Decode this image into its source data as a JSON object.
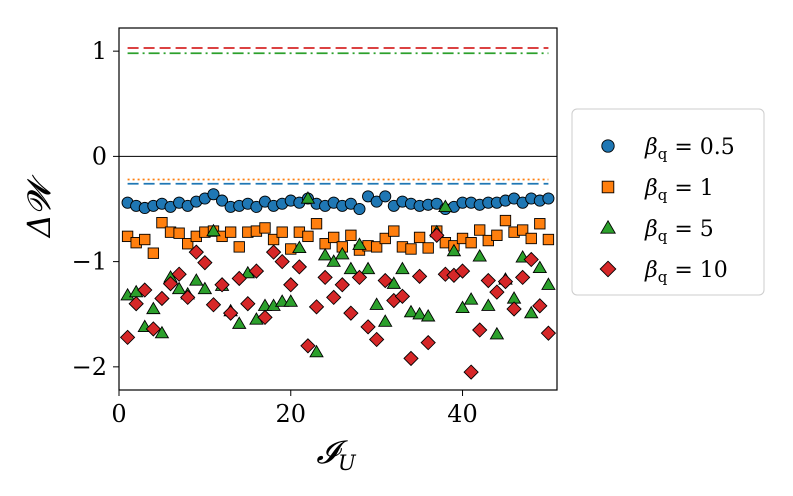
{
  "chart_data": {
    "type": "scatter",
    "xlabel": "𝓘",
    "xlabel_sub": "U",
    "ylabel": "Δ𝓦",
    "xlim": [
      0,
      51
    ],
    "ylim": [
      -2.22,
      1.22
    ],
    "x_ticks": [
      0,
      20,
      40
    ],
    "x_tick_labels": [
      "0",
      "20",
      "40"
    ],
    "y_ticks": [
      -2,
      -1,
      0,
      1
    ],
    "y_tick_labels": [
      "−2",
      "−1",
      "0",
      "1"
    ],
    "grid": false,
    "legend_placement": "right-outside",
    "zero_line": 0,
    "series": [
      {
        "name": "β_q = 0.5",
        "legend_prefix": "β",
        "legend_sub": "q",
        "legend_value": " = 0.5",
        "marker": "circle",
        "color": "#1f77b4",
        "reference_line": -0.26,
        "reference_style": "dashed",
        "x": [
          1,
          2,
          3,
          4,
          5,
          6,
          7,
          8,
          9,
          10,
          11,
          12,
          13,
          14,
          15,
          16,
          17,
          18,
          19,
          20,
          21,
          22,
          23,
          24,
          25,
          26,
          27,
          28,
          29,
          30,
          31,
          32,
          33,
          34,
          35,
          36,
          37,
          38,
          39,
          40,
          41,
          42,
          43,
          44,
          45,
          46,
          47,
          48,
          49,
          50
        ],
        "values": [
          -0.44,
          -0.47,
          -0.49,
          -0.47,
          -0.45,
          -0.48,
          -0.44,
          -0.47,
          -0.43,
          -0.4,
          -0.36,
          -0.42,
          -0.48,
          -0.47,
          -0.45,
          -0.48,
          -0.43,
          -0.47,
          -0.45,
          -0.42,
          -0.44,
          -0.4,
          -0.45,
          -0.47,
          -0.44,
          -0.47,
          -0.45,
          -0.5,
          -0.38,
          -0.43,
          -0.38,
          -0.47,
          -0.43,
          -0.45,
          -0.47,
          -0.46,
          -0.45,
          -0.5,
          -0.48,
          -0.44,
          -0.44,
          -0.46,
          -0.44,
          -0.44,
          -0.42,
          -0.4,
          -0.44,
          -0.4,
          -0.42,
          -0.4
        ]
      },
      {
        "name": "β_q = 1",
        "legend_prefix": "β",
        "legend_sub": "q",
        "legend_value": " = 1",
        "marker": "square",
        "color": "#ff7f0e",
        "reference_line": -0.22,
        "reference_style": "dotted",
        "x": [
          1,
          2,
          3,
          4,
          5,
          6,
          7,
          8,
          9,
          10,
          11,
          12,
          13,
          14,
          15,
          16,
          17,
          18,
          19,
          20,
          21,
          22,
          23,
          24,
          25,
          26,
          27,
          28,
          29,
          30,
          31,
          32,
          33,
          34,
          35,
          36,
          37,
          38,
          39,
          40,
          41,
          42,
          43,
          44,
          45,
          46,
          47,
          48,
          49,
          50
        ],
        "values": [
          -0.76,
          -0.82,
          -0.79,
          -0.92,
          -0.63,
          -0.72,
          -0.73,
          -0.83,
          -0.76,
          -0.72,
          -0.71,
          -0.76,
          -0.72,
          -0.86,
          -0.72,
          -0.71,
          -0.68,
          -0.79,
          -0.72,
          -0.88,
          -0.72,
          -0.76,
          -0.64,
          -0.83,
          -0.77,
          -0.86,
          -0.75,
          -0.89,
          -0.85,
          -0.86,
          -0.78,
          -0.71,
          -0.86,
          -0.88,
          -0.77,
          -0.87,
          -0.71,
          -0.82,
          -0.85,
          -0.78,
          -0.82,
          -0.7,
          -0.8,
          -0.75,
          -0.61,
          -0.72,
          -0.7,
          -0.78,
          -0.64,
          -0.79
        ]
      },
      {
        "name": "β_q = 5",
        "legend_prefix": "β",
        "legend_sub": "q",
        "legend_value": " = 5",
        "marker": "triangle",
        "color": "#2ca02c",
        "x": [
          1,
          2,
          3,
          4,
          5,
          6,
          7,
          8,
          9,
          10,
          11,
          12,
          13,
          14,
          15,
          16,
          17,
          18,
          19,
          20,
          21,
          22,
          23,
          24,
          25,
          26,
          27,
          28,
          29,
          30,
          31,
          32,
          33,
          34,
          35,
          36,
          37,
          38,
          39,
          40,
          41,
          42,
          43,
          44,
          45,
          46,
          47,
          48,
          49,
          50
        ],
        "values": [
          -1.32,
          -1.29,
          -1.62,
          -1.45,
          -1.68,
          -1.15,
          -1.26,
          -1.31,
          -1.18,
          -1.26,
          -0.71,
          -1.23,
          -1.47,
          -1.59,
          -1.11,
          -1.55,
          -1.42,
          -1.42,
          -1.38,
          -1.38,
          -0.87,
          -0.4,
          -1.86,
          -0.94,
          -1.0,
          -0.93,
          -1.07,
          -0.84,
          -1.07,
          -1.41,
          -1.57,
          -1.21,
          -1.07,
          -1.48,
          -1.5,
          -1.52,
          -0.72,
          -0.48,
          -0.9,
          -1.44,
          -1.36,
          -0.95,
          -1.42,
          -1.69,
          -1.17,
          -1.35,
          -0.96,
          -1.49,
          -1.06,
          -1.22
        ]
      },
      {
        "name": "β_q = 10",
        "legend_prefix": "β",
        "legend_sub": "q",
        "legend_value": " = 10",
        "marker": "diamond",
        "color": "#d62728",
        "reference_line": 1.03,
        "reference_style": "dashed",
        "x": [
          1,
          2,
          3,
          4,
          5,
          6,
          7,
          8,
          9,
          10,
          11,
          12,
          13,
          14,
          15,
          16,
          17,
          18,
          19,
          20,
          21,
          22,
          23,
          24,
          25,
          26,
          27,
          28,
          29,
          30,
          31,
          32,
          33,
          34,
          35,
          36,
          37,
          38,
          39,
          40,
          41,
          42,
          43,
          44,
          45,
          46,
          47,
          48,
          49,
          50
        ],
        "values": [
          -1.72,
          -1.4,
          -1.27,
          -1.64,
          -1.35,
          -1.21,
          -1.12,
          -1.34,
          -0.91,
          -1.01,
          -1.41,
          -1.22,
          -1.49,
          -1.16,
          -1.4,
          -1.09,
          -1.53,
          -0.91,
          -1.0,
          -1.22,
          -1.05,
          -1.8,
          -1.43,
          -1.15,
          -1.34,
          -1.22,
          -1.49,
          -1.15,
          -1.62,
          -1.74,
          -1.18,
          -1.37,
          -1.33,
          -1.92,
          -1.14,
          -1.77,
          -0.75,
          -1.12,
          -1.13,
          -1.09,
          -2.05,
          -1.65,
          -1.18,
          -1.29,
          -1.19,
          -1.45,
          -1.15,
          -0.98,
          -1.42,
          -1.68
        ]
      },
      {
        "name": "",
        "marker": "none",
        "color": "#2ca02c",
        "reference_line": 0.98,
        "reference_style": "dashdot",
        "x": [],
        "values": []
      }
    ]
  }
}
